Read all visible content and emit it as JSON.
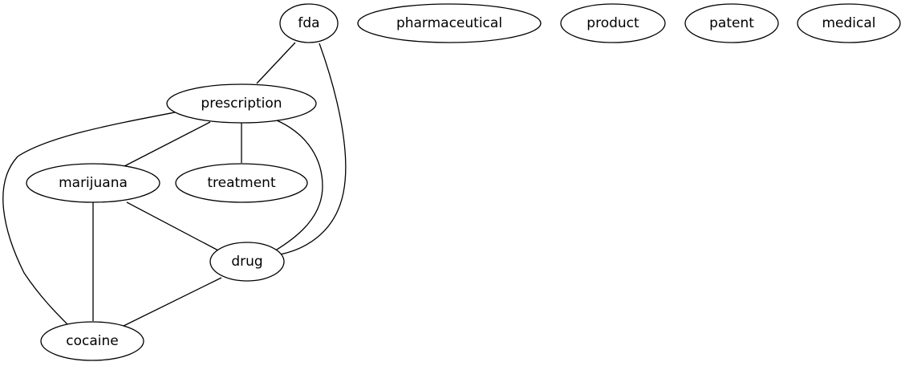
{
  "graph": {
    "nodes": [
      {
        "id": "fda",
        "label": "fda"
      },
      {
        "id": "pharmaceutical",
        "label": "pharmaceutical"
      },
      {
        "id": "product",
        "label": "product"
      },
      {
        "id": "patent",
        "label": "patent"
      },
      {
        "id": "medical",
        "label": "medical"
      },
      {
        "id": "prescription",
        "label": "prescription"
      },
      {
        "id": "marijuana",
        "label": "marijuana"
      },
      {
        "id": "treatment",
        "label": "treatment"
      },
      {
        "id": "drug",
        "label": "drug"
      },
      {
        "id": "cocaine",
        "label": "cocaine"
      }
    ],
    "edges": [
      {
        "from": "fda",
        "to": "prescription"
      },
      {
        "from": "fda",
        "to": "drug"
      },
      {
        "from": "prescription",
        "to": "marijuana"
      },
      {
        "from": "prescription",
        "to": "treatment"
      },
      {
        "from": "prescription",
        "to": "drug"
      },
      {
        "from": "prescription",
        "to": "cocaine"
      },
      {
        "from": "marijuana",
        "to": "drug"
      },
      {
        "from": "marijuana",
        "to": "cocaine"
      },
      {
        "from": "drug",
        "to": "cocaine"
      }
    ]
  }
}
